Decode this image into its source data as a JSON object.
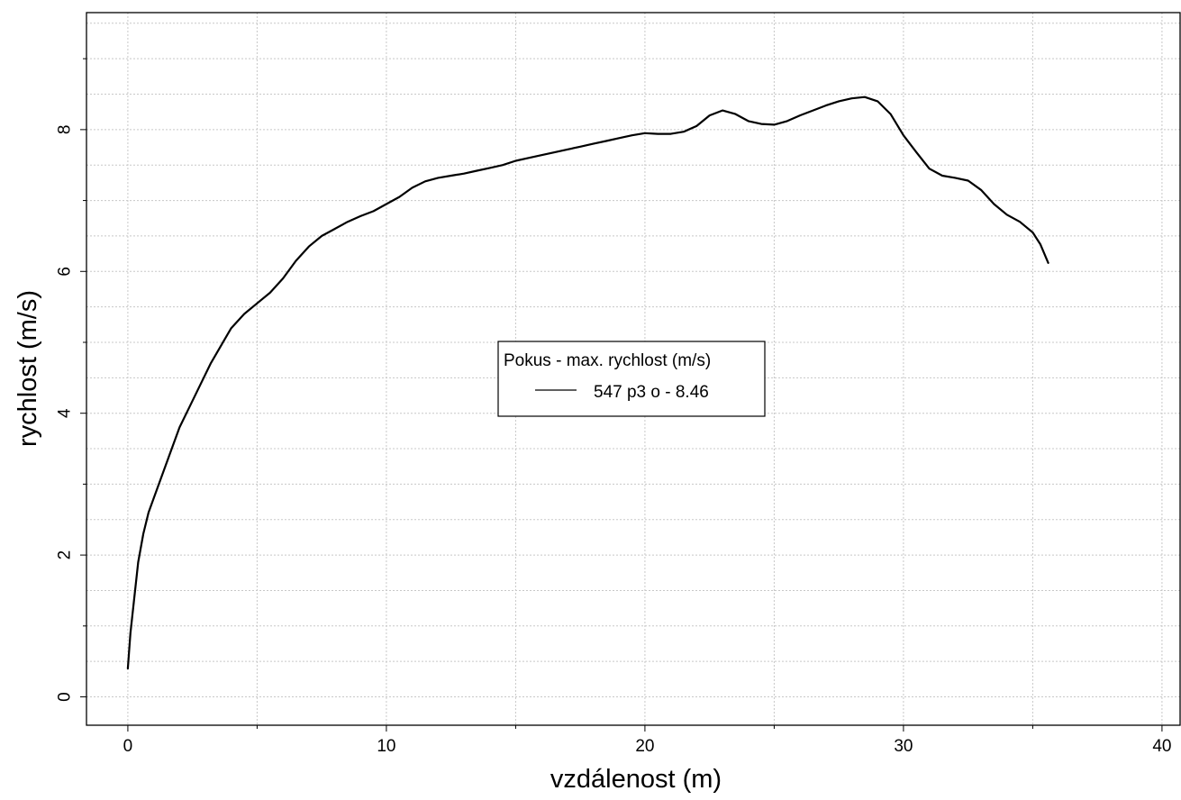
{
  "chart_data": {
    "type": "line",
    "xlabel": "vzdálenost (m)",
    "ylabel": "rychlost (m/s)",
    "xlim": [
      -1.6,
      40.7
    ],
    "ylim": [
      -0.4,
      9.65
    ],
    "x_ticks": [
      0,
      10,
      20,
      30,
      40
    ],
    "x_tick_labels": [
      "0",
      "10",
      "20",
      "30",
      "40"
    ],
    "y_ticks": [
      0,
      2,
      4,
      6,
      8
    ],
    "y_tick_labels": [
      "0",
      "2",
      "4",
      "6",
      "8"
    ],
    "x_minor_step": 5,
    "y_minor_step": 1,
    "grid": true,
    "legend": {
      "title": "Pokus - max. rychlost (m/s)",
      "placement": "center",
      "entries": [
        "547 p3 o - 8.46"
      ]
    },
    "series": [
      {
        "name": "547 p3 o - 8.46",
        "color": "#000000",
        "x": [
          0.0,
          0.1,
          0.25,
          0.4,
          0.6,
          0.8,
          1.0,
          1.3,
          1.6,
          2.0,
          2.4,
          2.8,
          3.2,
          3.6,
          4.0,
          4.5,
          5.0,
          5.5,
          6.0,
          6.5,
          7.0,
          7.5,
          8.0,
          8.5,
          9.0,
          9.5,
          10.0,
          10.5,
          11.0,
          11.5,
          12.0,
          12.5,
          13.0,
          13.5,
          14.0,
          14.5,
          15.0,
          15.5,
          16.0,
          16.5,
          17.0,
          17.5,
          18.0,
          18.5,
          19.0,
          19.5,
          20.0,
          20.5,
          21.0,
          21.5,
          22.0,
          22.5,
          23.0,
          23.5,
          24.0,
          24.5,
          25.0,
          25.5,
          26.0,
          26.5,
          27.0,
          27.5,
          28.0,
          28.5,
          29.0,
          29.5,
          30.0,
          30.5,
          31.0,
          31.5,
          32.0,
          32.5,
          33.0,
          33.5,
          34.0,
          34.5,
          35.0,
          35.3,
          35.6
        ],
        "y": [
          0.4,
          0.9,
          1.4,
          1.9,
          2.3,
          2.6,
          2.8,
          3.1,
          3.4,
          3.8,
          4.1,
          4.4,
          4.7,
          4.95,
          5.2,
          5.4,
          5.55,
          5.7,
          5.9,
          6.15,
          6.35,
          6.5,
          6.6,
          6.7,
          6.78,
          6.85,
          6.95,
          7.05,
          7.18,
          7.27,
          7.32,
          7.35,
          7.38,
          7.42,
          7.46,
          7.5,
          7.56,
          7.6,
          7.64,
          7.68,
          7.72,
          7.76,
          7.8,
          7.84,
          7.88,
          7.92,
          7.95,
          7.94,
          7.94,
          7.97,
          8.05,
          8.2,
          8.27,
          8.22,
          8.12,
          8.08,
          8.07,
          8.12,
          8.2,
          8.27,
          8.34,
          8.4,
          8.44,
          8.46,
          8.4,
          8.22,
          7.92,
          7.68,
          7.45,
          7.35,
          7.32,
          7.28,
          7.15,
          6.95,
          6.8,
          6.7,
          6.55,
          6.38,
          6.12
        ]
      }
    ]
  }
}
